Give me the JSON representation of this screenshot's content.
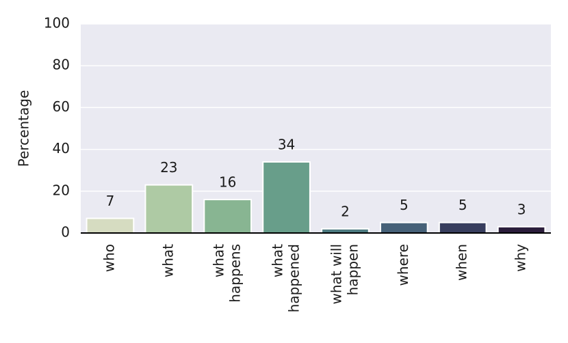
{
  "chart_data": {
    "type": "bar",
    "ylabel": "Percentage",
    "categories": [
      "who",
      "what",
      "what happens",
      "what happened",
      "what will happen",
      "where",
      "when",
      "why"
    ],
    "values": [
      7,
      23,
      16,
      34,
      2,
      5,
      5,
      3
    ],
    "colors": [
      "#d6dcc1",
      "#aecaa4",
      "#88b592",
      "#689e8a",
      "#4d7a80",
      "#466178",
      "#383e5e",
      "#2b1d3b"
    ],
    "ylim": [
      0,
      100
    ],
    "yticks": [
      0,
      20,
      40,
      60,
      80,
      100
    ],
    "grid": true,
    "background": "#eaeaf2"
  }
}
